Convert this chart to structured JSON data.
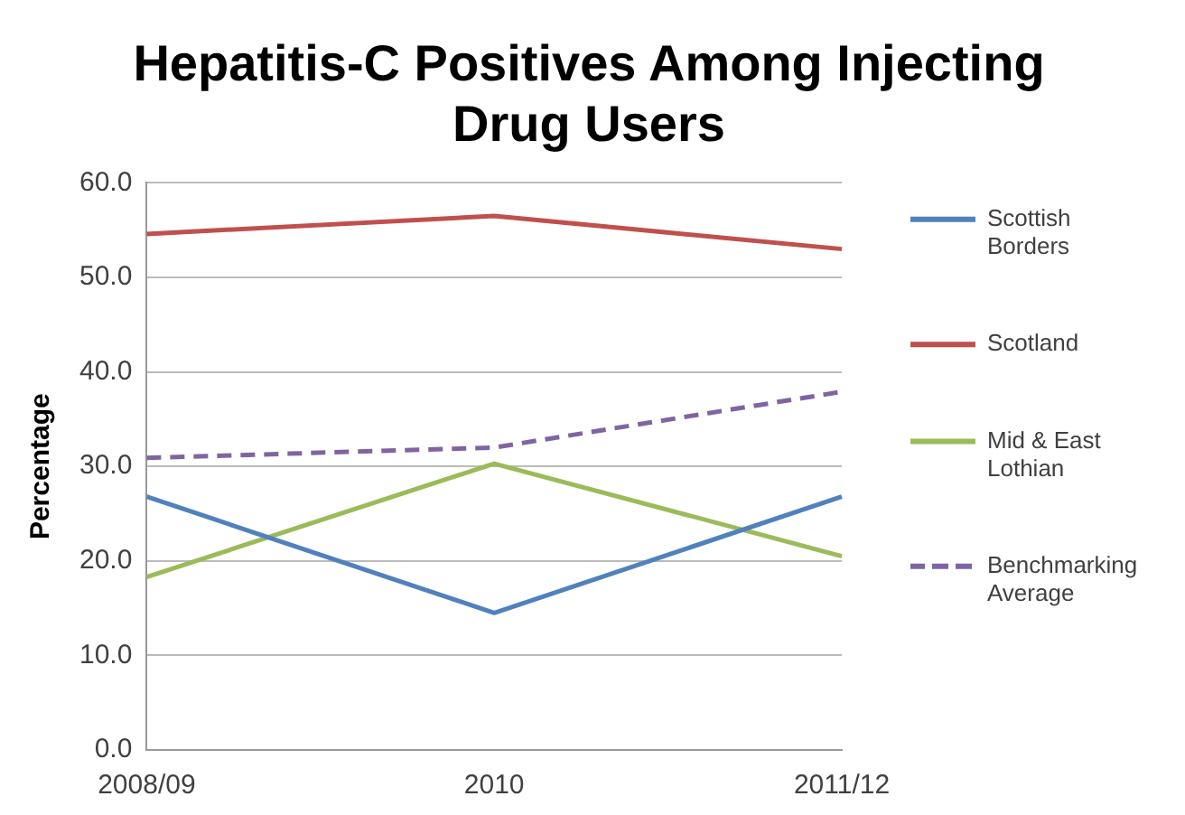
{
  "chart_data": {
    "type": "line",
    "title": "Hepatitis-C Positives Among Injecting Drug Users",
    "ylabel": "Percentage",
    "categories": [
      "2008/09",
      "2010",
      "2011/12"
    ],
    "series": [
      {
        "name": "Scottish Borders",
        "color": "#4f81bd",
        "values": [
          26.8,
          14.5,
          26.8
        ]
      },
      {
        "name": "Scotland",
        "color": "#c0504d",
        "values": [
          54.6,
          56.5,
          53.0
        ]
      },
      {
        "name": "Mid & East Lothian",
        "color": "#9bbb59",
        "values": [
          18.3,
          30.3,
          20.5
        ]
      },
      {
        "name": "Benchmarking Average",
        "color": "#8064a2",
        "values": [
          30.9,
          32.0,
          37.9
        ],
        "line_style": "dashed"
      }
    ],
    "ylim": [
      0,
      60
    ],
    "yticks": [
      {
        "value": 0,
        "label": "0.0"
      },
      {
        "value": 10,
        "label": "10.0"
      },
      {
        "value": 20,
        "label": "20.0"
      },
      {
        "value": 30,
        "label": "30.0"
      },
      {
        "value": 40,
        "label": "40.0"
      },
      {
        "value": 50,
        "label": "50.0"
      },
      {
        "value": 60,
        "label": "60.0"
      }
    ],
    "grid": "y",
    "legend": "right",
    "marker": "none"
  }
}
